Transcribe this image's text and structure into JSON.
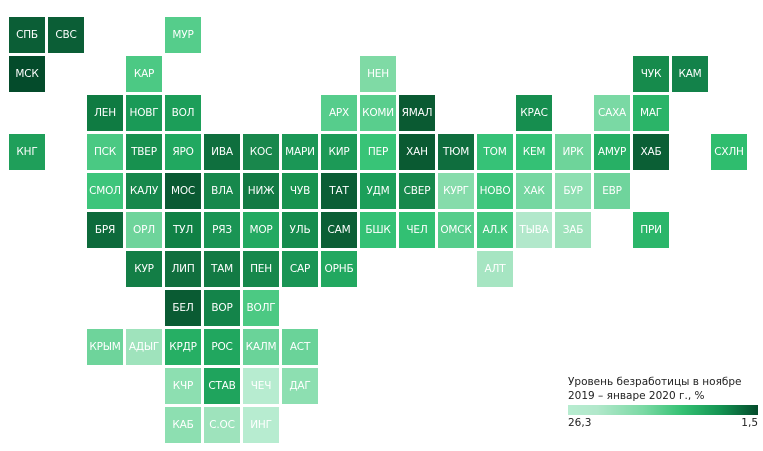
{
  "legend": {
    "title_line1": "Уровень безработицы в ноябре",
    "title_line2": "2019 – январе 2020 г., %",
    "min_label": "26,3",
    "max_label": "1,5",
    "color_low_unemployment": "#044b2b",
    "color_high_unemployment": "#b7ecd0"
  },
  "regions": [
    {
      "label": "СПБ",
      "row": 0,
      "col": 0,
      "color": "#0b5e36"
    },
    {
      "label": "СВС",
      "row": 0,
      "col": 1,
      "color": "#0b5e36"
    },
    {
      "label": "МУР",
      "row": 0,
      "col": 4,
      "color": "#55cd8b"
    },
    {
      "label": "МСК",
      "row": 1,
      "col": 0,
      "color": "#044b2b"
    },
    {
      "label": "КАР",
      "row": 1,
      "col": 3,
      "color": "#4cc984"
    },
    {
      "label": "НЕН",
      "row": 1,
      "col": 9,
      "color": "#7fdaa5"
    },
    {
      "label": "ЧУК",
      "row": 1,
      "col": 16,
      "color": "#168b4c"
    },
    {
      "label": "КАМ",
      "row": 1,
      "col": 17,
      "color": "#13824a"
    },
    {
      "label": "ЛЕН",
      "row": 2,
      "col": 2,
      "color": "#0f7b42"
    },
    {
      "label": "НОВГ",
      "row": 2,
      "col": 3,
      "color": "#1a9a57"
    },
    {
      "label": "ВОЛ",
      "row": 2,
      "col": 4,
      "color": "#1c9e59"
    },
    {
      "label": "АРХ",
      "row": 2,
      "col": 8,
      "color": "#56cd8c"
    },
    {
      "label": "КОМИ",
      "row": 2,
      "col": 9,
      "color": "#59ce8d"
    },
    {
      "label": "ЯМАЛ",
      "row": 2,
      "col": 10,
      "color": "#0a5a32"
    },
    {
      "label": "КРАС",
      "row": 2,
      "col": 13,
      "color": "#168e4f"
    },
    {
      "label": "САХА",
      "row": 2,
      "col": 15,
      "color": "#7ad9a4"
    },
    {
      "label": "МАГ",
      "row": 2,
      "col": 16,
      "color": "#2bb468"
    },
    {
      "label": "КНГ",
      "row": 3,
      "col": 0,
      "color": "#1f9f5a"
    },
    {
      "label": "ПСК",
      "row": 3,
      "col": 2,
      "color": "#4ac983"
    },
    {
      "label": "ТВЕР",
      "row": 3,
      "col": 3,
      "color": "#17914f"
    },
    {
      "label": "ЯРО",
      "row": 3,
      "col": 4,
      "color": "#21a860"
    },
    {
      "label": "ИВА",
      "row": 3,
      "col": 5,
      "color": "#0f6f3e"
    },
    {
      "label": "КОС",
      "row": 3,
      "col": 6,
      "color": "#19874c"
    },
    {
      "label": "МАРИ",
      "row": 3,
      "col": 7,
      "color": "#1b9756"
    },
    {
      "label": "КИР",
      "row": 3,
      "col": 8,
      "color": "#1c9a57"
    },
    {
      "label": "ПЕР",
      "row": 3,
      "col": 9,
      "color": "#38c477"
    },
    {
      "label": "ХАН",
      "row": 3,
      "col": 10,
      "color": "#0a5a32"
    },
    {
      "label": "ТЮМ",
      "row": 3,
      "col": 11,
      "color": "#0f6e3e"
    },
    {
      "label": "ТОМ",
      "row": 3,
      "col": 12,
      "color": "#36c277"
    },
    {
      "label": "КЕМ",
      "row": 3,
      "col": 13,
      "color": "#34c175"
    },
    {
      "label": "ИРК",
      "row": 3,
      "col": 14,
      "color": "#6ed49a"
    },
    {
      "label": "АМУР",
      "row": 3,
      "col": 15,
      "color": "#27b065"
    },
    {
      "label": "ХАБ",
      "row": 3,
      "col": 16,
      "color": "#0b5f35"
    },
    {
      "label": "СХЛН",
      "row": 3,
      "col": 18,
      "color": "#2fbd6e"
    },
    {
      "label": "СМОЛ",
      "row": 4,
      "col": 2,
      "color": "#3dc57b"
    },
    {
      "label": "КАЛУ",
      "row": 4,
      "col": 3,
      "color": "#17884c"
    },
    {
      "label": "МОС",
      "row": 4,
      "col": 4,
      "color": "#0a5a33"
    },
    {
      "label": "ВЛА",
      "row": 4,
      "col": 5,
      "color": "#17884c"
    },
    {
      "label": "НИЖ",
      "row": 4,
      "col": 6,
      "color": "#137a44"
    },
    {
      "label": "ЧУВ",
      "row": 4,
      "col": 7,
      "color": "#18934f"
    },
    {
      "label": "ТАТ",
      "row": 4,
      "col": 8,
      "color": "#0b5e35"
    },
    {
      "label": "УДМ",
      "row": 4,
      "col": 9,
      "color": "#1c9f5a"
    },
    {
      "label": "СВЕР",
      "row": 4,
      "col": 10,
      "color": "#17884c"
    },
    {
      "label": "КУРГ",
      "row": 4,
      "col": 11,
      "color": "#86dcab"
    },
    {
      "label": "НОВО",
      "row": 4,
      "col": 12,
      "color": "#3dc57b"
    },
    {
      "label": "ХАК",
      "row": 4,
      "col": 13,
      "color": "#75d7a1"
    },
    {
      "label": "БУР",
      "row": 4,
      "col": 14,
      "color": "#8ddfb1"
    },
    {
      "label": "ЕВР",
      "row": 4,
      "col": 15,
      "color": "#6fd49c"
    },
    {
      "label": "БРЯ",
      "row": 5,
      "col": 2,
      "color": "#0d6a3b"
    },
    {
      "label": "ОРЛ",
      "row": 5,
      "col": 3,
      "color": "#6ed49b"
    },
    {
      "label": "ТУЛ",
      "row": 5,
      "col": 4,
      "color": "#108145"
    },
    {
      "label": "РЯЗ",
      "row": 5,
      "col": 5,
      "color": "#1a9454"
    },
    {
      "label": "МОР",
      "row": 5,
      "col": 6,
      "color": "#23a961"
    },
    {
      "label": "УЛЬ",
      "row": 5,
      "col": 7,
      "color": "#168c4e"
    },
    {
      "label": "САМ",
      "row": 5,
      "col": 8,
      "color": "#0b5f35"
    },
    {
      "label": "БШК",
      "row": 5,
      "col": 9,
      "color": "#34c175"
    },
    {
      "label": "ЧЕЛ",
      "row": 5,
      "col": 10,
      "color": "#32c073"
    },
    {
      "label": "ОМСК",
      "row": 5,
      "col": 11,
      "color": "#56cd8b"
    },
    {
      "label": "АЛ.К",
      "row": 5,
      "col": 12,
      "color": "#45c880"
    },
    {
      "label": "ТЫВА",
      "row": 5,
      "col": 13,
      "color": "#b2e8cb"
    },
    {
      "label": "ЗАБ",
      "row": 5,
      "col": 14,
      "color": "#9fe3bc"
    },
    {
      "label": "ПРИ",
      "row": 5,
      "col": 16,
      "color": "#2bb66a"
    },
    {
      "label": "КУР",
      "row": 6,
      "col": 3,
      "color": "#137e46"
    },
    {
      "label": "ЛИП",
      "row": 6,
      "col": 4,
      "color": "#116f3e"
    },
    {
      "label": "ТАМ",
      "row": 6,
      "col": 5,
      "color": "#137a44"
    },
    {
      "label": "ПЕН",
      "row": 6,
      "col": 6,
      "color": "#17884c"
    },
    {
      "label": "САР",
      "row": 6,
      "col": 7,
      "color": "#1a9555"
    },
    {
      "label": "ОРНБ",
      "row": 6,
      "col": 8,
      "color": "#22a860"
    },
    {
      "label": "АЛТ",
      "row": 6,
      "col": 12,
      "color": "#a6e5c2"
    },
    {
      "label": "БЕЛ",
      "row": 7,
      "col": 4,
      "color": "#0a5b33"
    },
    {
      "label": "ВОР",
      "row": 7,
      "col": 5,
      "color": "#14844a"
    },
    {
      "label": "ВОЛГ",
      "row": 7,
      "col": 6,
      "color": "#4cc983"
    },
    {
      "label": "КРЫМ",
      "row": 8,
      "col": 2,
      "color": "#6ed49b"
    },
    {
      "label": "АДЫГ",
      "row": 8,
      "col": 3,
      "color": "#9fe3bc"
    },
    {
      "label": "КРДР",
      "row": 8,
      "col": 4,
      "color": "#26af64"
    },
    {
      "label": "РОС",
      "row": 8,
      "col": 5,
      "color": "#21a75f"
    },
    {
      "label": "КАЛМ",
      "row": 8,
      "col": 6,
      "color": "#6ad399"
    },
    {
      "label": "АСТ",
      "row": 8,
      "col": 7,
      "color": "#6ad399"
    },
    {
      "label": "КЧР",
      "row": 9,
      "col": 4,
      "color": "#8ddfb1"
    },
    {
      "label": "СТАВ",
      "row": 9,
      "col": 5,
      "color": "#1fa45d"
    },
    {
      "label": "ЧЕЧ",
      "row": 9,
      "col": 6,
      "color": "#b7ecd0"
    },
    {
      "label": "ДАГ",
      "row": 9,
      "col": 7,
      "color": "#8ddfb1"
    },
    {
      "label": "КАБ",
      "row": 10,
      "col": 4,
      "color": "#8ddfb1"
    },
    {
      "label": "С.ОС",
      "row": 10,
      "col": 5,
      "color": "#9ee3bc"
    },
    {
      "label": "ИНГ",
      "row": 10,
      "col": 6,
      "color": "#b7ecd0"
    }
  ]
}
